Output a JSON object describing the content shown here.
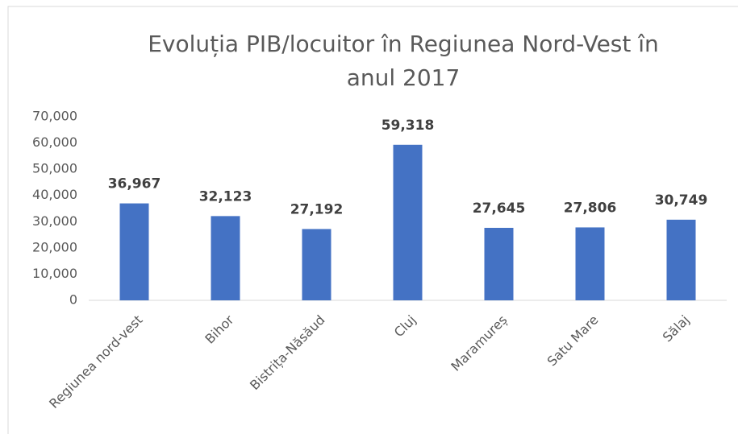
{
  "chart_data": {
    "type": "bar",
    "title": "Evoluția PIB/locuitor în Regiunea Nord-Vest în anul 2017",
    "categories": [
      "Regiunea nord-vest",
      "Bihor",
      "Bistrița-Năsăud",
      "Cluj",
      "Maramureș",
      "Satu Mare",
      "Sălaj"
    ],
    "values": [
      36967,
      32123,
      27192,
      59318,
      27645,
      27806,
      30749
    ],
    "value_labels": [
      "36,967",
      "32,123",
      "27,192",
      "59,318",
      "27,645",
      "27,806",
      "30,749"
    ],
    "color": "#4472c4",
    "ylim": [
      0,
      70000
    ],
    "yticks": [
      0,
      {
        "value": 10000,
        "label": "10,000"
      },
      {
        "value": 20000,
        "label": "20,000"
      },
      {
        "value": 30000,
        "label": "30,000"
      },
      {
        "value": 40000,
        "label": "40,000"
      },
      {
        "value": 50000,
        "label": "50,000"
      },
      {
        "value": 60000,
        "label": "60,000"
      },
      {
        "value": 70000,
        "label": "70,000"
      }
    ],
    "grid": false
  }
}
